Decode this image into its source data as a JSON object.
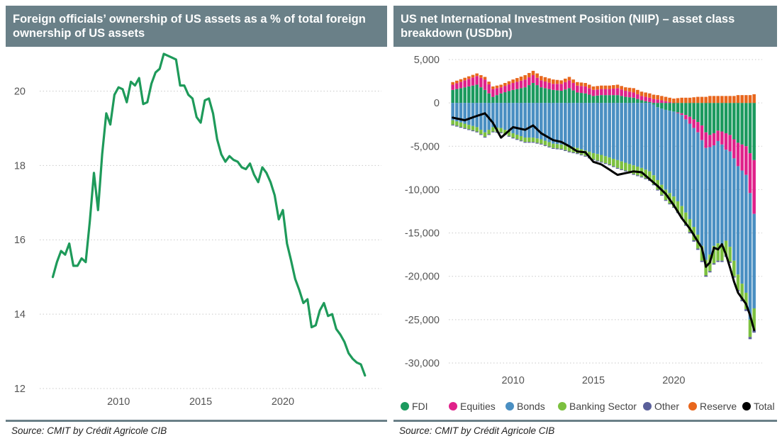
{
  "left_panel": {
    "title": "Foreign officials’ ownership of US assets as a % of total foreign ownership of US assets",
    "source": "Source: CMIT by Crédit Agricole CIB"
  },
  "right_panel": {
    "title": "US net International Investment Position (NIIP) – asset class breakdown (USDbn)",
    "source": "Source: CMIT by Crédit Agricole CIB"
  },
  "colors": {
    "header_bg": "#6a8088",
    "line_green": "#1e9a5a",
    "FDI": "#1b9a5e",
    "Equities": "#e0218a",
    "Bonds": "#4a8fc2",
    "Banking Sector": "#7cc03f",
    "Other": "#5a5f9a",
    "Reserve": "#e8661c",
    "Total": "#000000"
  },
  "chart_data": [
    {
      "type": "line",
      "title": "Foreign officials’ ownership of US assets as a % of total foreign ownership of US assets",
      "xlabel": "",
      "ylabel": "",
      "xlim": [
        2005.2,
        2026.0
      ],
      "ylim": [
        12,
        21
      ],
      "xticks": [
        2010,
        2015,
        2020
      ],
      "yticks": [
        12,
        14,
        16,
        18,
        20
      ],
      "grid": "horizontal-dotted",
      "series": [
        {
          "x": [
            2006.0,
            2006.25,
            2006.5,
            2006.75,
            2007.0,
            2007.25,
            2007.5,
            2007.75,
            2008.0,
            2008.25,
            2008.5,
            2008.75,
            2009.0,
            2009.25,
            2009.5,
            2009.75,
            2010.0,
            2010.25,
            2010.5,
            2010.75,
            2011.0,
            2011.25,
            2011.5,
            2011.75,
            2012.0,
            2012.25,
            2012.5,
            2012.75,
            2013.0,
            2013.25,
            2013.5,
            2013.75,
            2014.0,
            2014.25,
            2014.5,
            2014.75,
            2015.0,
            2015.25,
            2015.5,
            2015.75,
            2016.0,
            2016.25,
            2016.5,
            2016.75,
            2017.0,
            2017.25,
            2017.5,
            2017.75,
            2018.0,
            2018.25,
            2018.5,
            2018.75,
            2019.0,
            2019.25,
            2019.5,
            2019.75,
            2020.0,
            2020.25,
            2020.5,
            2020.75,
            2021.0,
            2021.25,
            2021.5,
            2021.75,
            2022.0,
            2022.25,
            2022.5,
            2022.75,
            2023.0,
            2023.25,
            2023.5,
            2023.75,
            2024.0,
            2024.25,
            2024.5,
            2024.75,
            2025.0
          ],
          "values": [
            15.0,
            15.4,
            15.7,
            15.6,
            15.9,
            15.3,
            15.3,
            15.5,
            15.4,
            16.5,
            17.8,
            16.8,
            18.3,
            19.4,
            19.1,
            19.9,
            20.1,
            20.05,
            19.7,
            20.25,
            20.15,
            20.35,
            19.65,
            19.7,
            20.2,
            20.5,
            20.6,
            21.0,
            20.95,
            20.9,
            20.85,
            20.15,
            20.15,
            19.9,
            19.8,
            19.3,
            19.15,
            19.75,
            19.8,
            19.4,
            18.7,
            18.3,
            18.1,
            18.25,
            18.15,
            18.1,
            17.95,
            17.9,
            18.05,
            17.75,
            17.55,
            17.95,
            17.8,
            17.55,
            17.2,
            16.55,
            16.8,
            15.9,
            15.45,
            14.95,
            14.65,
            14.3,
            14.4,
            13.65,
            13.7,
            14.1,
            14.3,
            13.95,
            14.0,
            13.6,
            13.45,
            13.25,
            12.95,
            12.8,
            12.7,
            12.65,
            12.35
          ]
        }
      ]
    },
    {
      "type": "bar",
      "subtype": "stacked-with-line",
      "title": "US net International Investment Position (NIIP) – asset class breakdown (USDbn)",
      "xlabel": "",
      "ylabel": "",
      "xlim": [
        2006.0,
        2025.5
      ],
      "ylim": [
        -30000,
        5000
      ],
      "xticks": [
        2010,
        2015,
        2020
      ],
      "yticks": [
        5000,
        0,
        -5000,
        -10000,
        -15000,
        -20000,
        -25000,
        -30000
      ],
      "grid": "horizontal-dotted",
      "legend": "bottom",
      "series_names": [
        "FDI",
        "Equities",
        "Bonds",
        "Banking Sector",
        "Other",
        "Reserve",
        "Total"
      ],
      "anchors": {
        "x": [
          2006.25,
          2007.0,
          2007.75,
          2008.25,
          2008.75,
          2009.25,
          2010.0,
          2010.75,
          2011.25,
          2011.75,
          2012.5,
          2013.0,
          2013.5,
          2014.0,
          2014.5,
          2015.0,
          2015.5,
          2016.0,
          2016.5,
          2017.0,
          2017.5,
          2018.0,
          2018.5,
          2019.0,
          2019.5,
          2020.0,
          2020.5,
          2021.0,
          2021.5,
          2021.75,
          2022.0,
          2022.25,
          2022.5,
          2022.75,
          2023.0,
          2023.25,
          2023.5,
          2023.75,
          2024.0,
          2024.5,
          2024.75,
          2025.0
        ],
        "FDI": [
          1500,
          1800,
          2100,
          1500,
          700,
          1100,
          1500,
          1800,
          2300,
          1800,
          1500,
          1400,
          1700,
          1200,
          1100,
          800,
          900,
          900,
          900,
          700,
          600,
          300,
          100,
          -500,
          -800,
          -1000,
          -1200,
          -1600,
          -2200,
          -2600,
          -3400,
          -3700,
          -3500,
          -3200,
          -3300,
          -3500,
          -3700,
          -4200,
          -4600,
          -5000,
          -5800,
          -6600
        ],
        "Equities": [
          600,
          800,
          1000,
          1200,
          900,
          700,
          800,
          900,
          900,
          800,
          700,
          800,
          900,
          800,
          800,
          700,
          700,
          700,
          800,
          700,
          600,
          500,
          500,
          400,
          200,
          0,
          -200,
          -800,
          -1200,
          -1700,
          -1800,
          -1400,
          -1400,
          -1200,
          -1500,
          -1900,
          -1900,
          -2200,
          -2700,
          -3300,
          -4600,
          -6200
        ],
        "Bonds": [
          -2000,
          -2400,
          -2800,
          -3400,
          -2800,
          -2900,
          -3500,
          -4000,
          -4000,
          -4200,
          -4700,
          -4800,
          -5000,
          -5200,
          -5500,
          -5800,
          -6000,
          -6300,
          -6600,
          -6900,
          -7200,
          -7500,
          -7900,
          -8400,
          -9200,
          -9800,
          -10500,
          -11000,
          -11800,
          -12200,
          -12900,
          -12400,
          -11600,
          -11800,
          -11500,
          -10500,
          -11000,
          -11800,
          -12500,
          -13600,
          -14600,
          -10900
        ],
        "Banking Sector": [
          -500,
          -500,
          -500,
          -500,
          -500,
          -500,
          -500,
          -500,
          -500,
          -500,
          -500,
          -500,
          -600,
          -600,
          -600,
          -700,
          -800,
          -800,
          -900,
          -900,
          -1000,
          -1000,
          -1000,
          -1100,
          -1200,
          -1200,
          -1300,
          -1500,
          -1600,
          -1700,
          -1800,
          -1900,
          -2000,
          -2000,
          -1900,
          -1700,
          -1700,
          -1800,
          -1800,
          -1900,
          -2000,
          -2500
        ],
        "Other": [
          -100,
          -100,
          -100,
          -100,
          -100,
          -100,
          -100,
          -100,
          -100,
          -100,
          -100,
          -100,
          -100,
          -100,
          -100,
          -100,
          -100,
          -100,
          -100,
          -100,
          -100,
          -100,
          -100,
          -100,
          -100,
          -100,
          -100,
          -150,
          -150,
          -150,
          -150,
          -150,
          -150,
          -150,
          -150,
          -150,
          -150,
          -150,
          -150,
          -200,
          -250,
          -300
        ],
        "Reserve": [
          300,
          300,
          300,
          300,
          300,
          300,
          400,
          500,
          500,
          500,
          500,
          400,
          400,
          400,
          400,
          400,
          400,
          400,
          400,
          400,
          500,
          500,
          500,
          500,
          500,
          500,
          600,
          600,
          700,
          700,
          700,
          800,
          800,
          800,
          800,
          800,
          800,
          800,
          900,
          900,
          900,
          1000
        ],
        "Total": [
          -1700,
          -2000,
          -1500,
          -1200,
          -2300,
          -4000,
          -2800,
          -3100,
          -2600,
          -3500,
          -4300,
          -4500,
          -5000,
          -5600,
          -5700,
          -6800,
          -7100,
          -7700,
          -8300,
          -8100,
          -7900,
          -8000,
          -8800,
          -9600,
          -10500,
          -11800,
          -13300,
          -14500,
          -16000,
          -16700,
          -18900,
          -18400,
          -16700,
          -16900,
          -16300,
          -17500,
          -19000,
          -20600,
          -21900,
          -23200,
          -24500,
          -26200
        ]
      }
    }
  ]
}
